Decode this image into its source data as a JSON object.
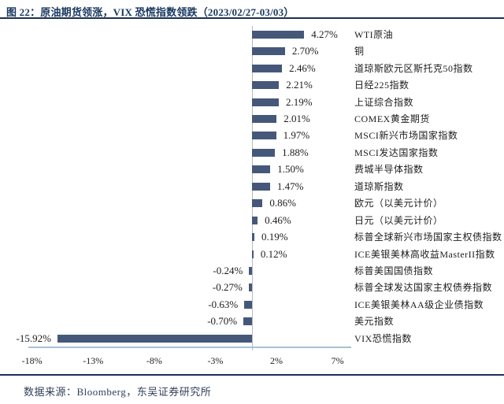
{
  "chart_data": {
    "type": "bar",
    "orientation": "horizontal",
    "title": "图 22：原油期货领涨，VIX 恐慌指数领跌（2023/02/27-03/03）",
    "categories": [
      "WTI原油",
      "铜",
      "道琼斯欧元区斯托克50指数",
      "日经225指数",
      "上证综合指数",
      "COMEX黄金期货",
      "MSCI新兴市场国家指数",
      "MSCI发达国家指数",
      "费城半导体指数",
      "道琼斯指数",
      "欧元（以美元计价）",
      "日元（以美元计价）",
      "标普全球新兴市场国家主权债指数",
      "ICE美银美林高收益MasterII指数",
      "标普美国国债指数",
      "标普全球发达国家主权债券指数",
      "ICE美银美林AA级企业债指数",
      "美元指数",
      "VIX恐慌指数"
    ],
    "values": [
      4.27,
      2.7,
      2.46,
      2.21,
      2.19,
      2.01,
      1.97,
      1.88,
      1.5,
      1.47,
      0.86,
      0.46,
      0.19,
      0.12,
      -0.24,
      -0.27,
      -0.63,
      -0.7,
      -15.92
    ],
    "value_labels": [
      "4.27%",
      "2.70%",
      "2.46%",
      "2.21%",
      "2.19%",
      "2.01%",
      "1.97%",
      "1.88%",
      "1.50%",
      "1.47%",
      "0.86%",
      "0.46%",
      "0.19%",
      "0.12%",
      "-0.24%",
      "-0.27%",
      "-0.63%",
      "-0.70%",
      "-15.92%"
    ],
    "unit": "%",
    "xlim": [
      -18.4,
      8.1
    ],
    "x_ticks": [
      -18,
      -13,
      -8,
      -3,
      2,
      7
    ],
    "x_tick_labels": [
      "-18%",
      "-13%",
      "-8%",
      "-3%",
      "2%",
      "7%"
    ],
    "grid": false,
    "legend": "none",
    "bar_color": "#45587a"
  },
  "colors": {
    "bar": "#45587a",
    "title": "#17375e",
    "rule": "#1d2f52",
    "x_axis_line": "#a9c2d6",
    "zero_line": "#b7babd",
    "label_text": "#1c1c1c"
  },
  "footer": {
    "text": "数据来源：Bloomberg，东吴证券研究所"
  }
}
